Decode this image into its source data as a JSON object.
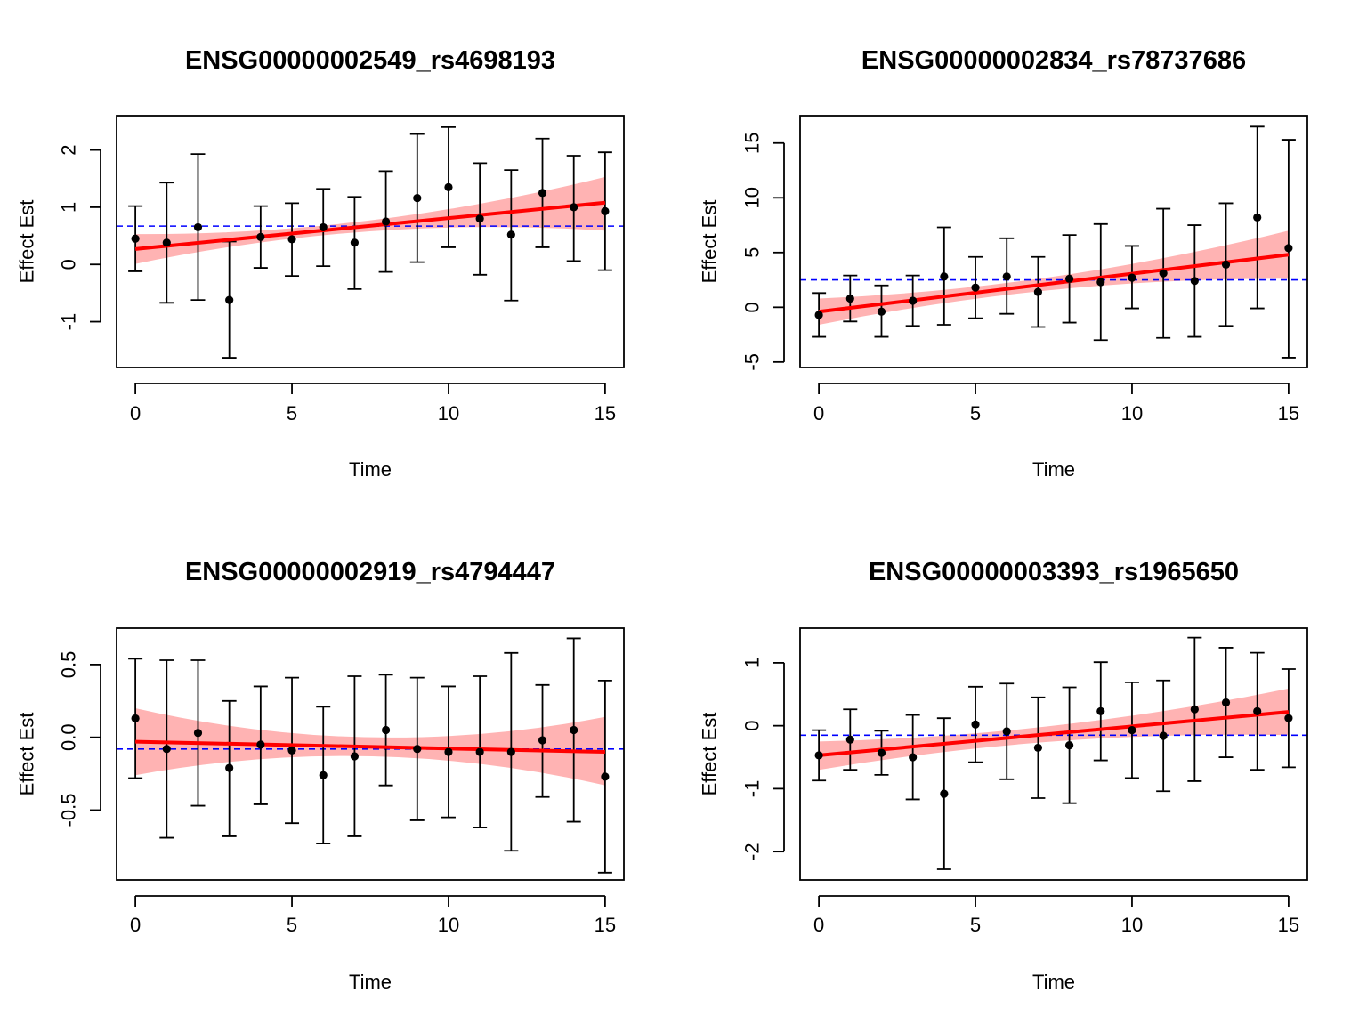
{
  "chart_data": [
    {
      "type": "scatter",
      "title": "ENSG00000002549_rs4698193",
      "xlabel": "Time",
      "ylabel": "Effect Est",
      "xlim": [
        -0.6,
        15.6
      ],
      "ylim": [
        -1.8,
        2.6
      ],
      "xticks": [
        0,
        5,
        10,
        15
      ],
      "yticks": [
        -1,
        0,
        1,
        2
      ],
      "ytick_labels": [
        "-1",
        "0",
        "1",
        "2"
      ],
      "x": [
        0,
        1,
        2,
        3,
        4,
        5,
        6,
        7,
        8,
        9,
        10,
        11,
        12,
        13,
        14,
        15
      ],
      "y": [
        0.45,
        0.38,
        0.65,
        -0.62,
        0.48,
        0.44,
        0.65,
        0.38,
        0.75,
        1.16,
        1.35,
        0.8,
        0.52,
        1.25,
        1.0,
        0.93
      ],
      "lower": [
        -0.12,
        -0.67,
        -0.62,
        -1.63,
        -0.06,
        -0.2,
        -0.03,
        -0.43,
        -0.13,
        0.04,
        0.3,
        -0.18,
        -0.63,
        0.3,
        0.06,
        -0.1
      ],
      "upper": [
        1.02,
        1.43,
        1.93,
        0.4,
        1.02,
        1.07,
        1.32,
        1.18,
        1.63,
        2.28,
        2.4,
        1.77,
        1.65,
        2.2,
        1.9,
        1.96
      ],
      "fit": {
        "x0": 0,
        "y0": 0.27,
        "x1": 15,
        "y1": 1.08
      },
      "band_lower": [
        0.01,
        0.59
      ],
      "band_mid_lower": 0.58,
      "band_upper": [
        0.53,
        1.53
      ],
      "mean_line": 0.67
    },
    {
      "type": "scatter",
      "title": "ENSG00000002834_rs78737686",
      "xlabel": "Time",
      "ylabel": "Effect Est",
      "xlim": [
        -0.6,
        15.6
      ],
      "ylim": [
        -5.5,
        17.5
      ],
      "xticks": [
        0,
        5,
        10,
        15
      ],
      "yticks": [
        -5,
        0,
        5,
        10,
        15
      ],
      "ytick_labels": [
        "-5",
        "0",
        "5",
        "10",
        "15"
      ],
      "x": [
        0,
        1,
        2,
        3,
        4,
        5,
        6,
        7,
        8,
        9,
        10,
        11,
        12,
        13,
        14,
        15
      ],
      "y": [
        -0.7,
        0.8,
        -0.4,
        0.6,
        2.8,
        1.8,
        2.8,
        1.4,
        2.6,
        2.3,
        2.7,
        3.1,
        2.4,
        3.9,
        8.2,
        5.4
      ],
      "lower": [
        -2.7,
        -1.3,
        -2.7,
        -1.7,
        -1.6,
        -1.0,
        -0.6,
        -1.8,
        -1.4,
        -3.0,
        -0.1,
        -2.8,
        -2.7,
        -1.7,
        -0.1,
        -4.6
      ],
      "upper": [
        1.3,
        2.9,
        2.0,
        2.9,
        7.3,
        4.6,
        6.3,
        4.6,
        6.6,
        7.6,
        5.6,
        9.0,
        7.5,
        9.5,
        16.5,
        15.3
      ],
      "fit": {
        "x0": 0,
        "y0": -0.4,
        "x1": 15,
        "y1": 4.8
      },
      "band_lower": [
        -1.6,
        2.6
      ],
      "band_mid_lower": 1.6,
      "band_upper": [
        0.8,
        7.0
      ],
      "mean_line": 2.5
    },
    {
      "type": "scatter",
      "title": "ENSG00000002919_rs4794447",
      "xlabel": "Time",
      "ylabel": "Effect Est",
      "xlim": [
        -0.6,
        15.6
      ],
      "ylim": [
        -0.98,
        0.75
      ],
      "xticks": [
        0,
        5,
        10,
        15
      ],
      "yticks": [
        -0.5,
        0.0,
        0.5
      ],
      "ytick_labels": [
        "-0.5",
        "0.0",
        "0.5"
      ],
      "x": [
        0,
        1,
        2,
        3,
        4,
        5,
        6,
        7,
        8,
        9,
        10,
        11,
        12,
        13,
        14,
        15
      ],
      "y": [
        0.13,
        -0.08,
        0.03,
        -0.21,
        -0.05,
        -0.09,
        -0.26,
        -0.13,
        0.05,
        -0.08,
        -0.1,
        -0.1,
        -0.1,
        -0.02,
        0.05,
        -0.27
      ],
      "lower": [
        -0.28,
        -0.69,
        -0.47,
        -0.68,
        -0.46,
        -0.59,
        -0.73,
        -0.68,
        -0.33,
        -0.57,
        -0.55,
        -0.62,
        -0.78,
        -0.41,
        -0.58,
        -0.93
      ],
      "upper": [
        0.54,
        0.53,
        0.53,
        0.25,
        0.35,
        0.41,
        0.21,
        0.42,
        0.43,
        0.41,
        0.35,
        0.42,
        0.58,
        0.36,
        0.68,
        0.39
      ],
      "fit": {
        "x0": 0,
        "y0": -0.03,
        "x1": 15,
        "y1": -0.1
      },
      "band_lower": [
        -0.26,
        -0.33
      ],
      "band_mid_lower": -0.13,
      "band_upper": [
        0.2,
        0.14
      ],
      "mean_line": -0.08
    },
    {
      "type": "scatter",
      "title": "ENSG00000003393_rs1965650",
      "xlabel": "Time",
      "ylabel": "Effect Est",
      "xlim": [
        -0.6,
        15.6
      ],
      "ylim": [
        -2.45,
        1.55
      ],
      "xticks": [
        0,
        5,
        10,
        15
      ],
      "yticks": [
        -2,
        -1,
        0,
        1
      ],
      "ytick_labels": [
        "-2",
        "-1",
        "0",
        "1"
      ],
      "x": [
        0,
        1,
        2,
        3,
        4,
        5,
        6,
        7,
        8,
        9,
        10,
        11,
        12,
        13,
        14,
        15
      ],
      "y": [
        -0.47,
        -0.22,
        -0.43,
        -0.5,
        -1.08,
        0.02,
        -0.09,
        -0.35,
        -0.31,
        0.23,
        -0.07,
        -0.16,
        0.26,
        0.37,
        0.23,
        0.12
      ],
      "lower": [
        -0.87,
        -0.7,
        -0.78,
        -1.17,
        -2.28,
        -0.58,
        -0.85,
        -1.15,
        -1.23,
        -0.55,
        -0.83,
        -1.04,
        -0.88,
        -0.5,
        -0.7,
        -0.66
      ],
      "upper": [
        -0.07,
        0.26,
        -0.08,
        0.17,
        0.12,
        0.62,
        0.67,
        0.45,
        0.61,
        1.01,
        0.69,
        0.72,
        1.4,
        1.24,
        1.16,
        0.9
      ],
      "fit": {
        "x0": 0,
        "y0": -0.47,
        "x1": 15,
        "y1": 0.22
      },
      "band_lower": [
        -0.7,
        -0.15
      ],
      "band_mid_lower": -0.25,
      "band_upper": [
        -0.25,
        0.59
      ],
      "mean_line": -0.15
    }
  ],
  "colors": {
    "fit_line": "#ff0000",
    "band": "#ffb3b3",
    "mean_line": "#0000ff",
    "points": "#000000",
    "errorbars": "#000000",
    "axes": "#000000"
  }
}
